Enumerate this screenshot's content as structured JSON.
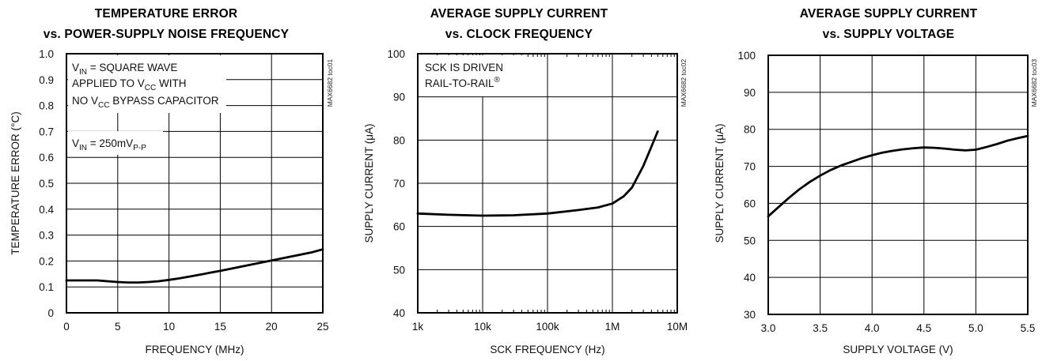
{
  "chart_data": [
    {
      "type": "line",
      "title_line1": "TEMPERATURE ERROR",
      "title_line2": "vs. POWER-SUPPLY NOISE FREQUENCY",
      "xlabel": "FREQUENCY (MHz)",
      "ylabel": "TEMPERATURE ERROR (°C)",
      "code": "MAX6682 toc01",
      "xlim": [
        0,
        25
      ],
      "ylim": [
        0,
        1.0
      ],
      "xscale": "linear",
      "xticks": [
        0,
        5,
        10,
        15,
        20,
        25
      ],
      "xtick_labels": [
        "0",
        "5",
        "10",
        "15",
        "20",
        "25"
      ],
      "yticks": [
        0,
        0.1,
        0.2,
        0.3,
        0.4,
        0.5,
        0.6,
        0.7,
        0.8,
        0.9,
        1.0
      ],
      "ytick_labels": [
        "0",
        "0.1",
        "0.2",
        "0.3",
        "0.4",
        "0.5",
        "0.6",
        "0.7",
        "0.8",
        "0.9",
        "1.0"
      ],
      "grid": true,
      "annotations": {
        "line1_main": "V",
        "line1_sub": "IN",
        "line1_rest": " = SQUARE WAVE",
        "line2_main": "APPLIED TO V",
        "line2_sub": "CC",
        "line2_rest": " WITH",
        "line3_main": "NO V",
        "line3_sub": "CC",
        "line3_rest": " BYPASS CAPACITOR",
        "line4_main": "V",
        "line4_sub": "IN",
        "line4_rest": " = 250mV",
        "line4_sub2": "P-P"
      },
      "series": [
        {
          "x": [
            0,
            1,
            2,
            3,
            4,
            5,
            6,
            7,
            8,
            9,
            10,
            11,
            12,
            13,
            14,
            15,
            16,
            17,
            18,
            19,
            20,
            21,
            22,
            23,
            24,
            25
          ],
          "y": [
            0.125,
            0.125,
            0.125,
            0.125,
            0.122,
            0.119,
            0.117,
            0.117,
            0.119,
            0.122,
            0.127,
            0.133,
            0.14,
            0.147,
            0.155,
            0.162,
            0.17,
            0.178,
            0.186,
            0.194,
            0.202,
            0.21,
            0.218,
            0.226,
            0.234,
            0.245
          ]
        }
      ]
    },
    {
      "type": "line",
      "title_line1": "AVERAGE SUPPLY CURRENT",
      "title_line2": "vs. CLOCK FREQUENCY",
      "xlabel": "SCK FREQUENCY (Hz)",
      "ylabel": "SUPPLY CURRENT (μA)",
      "code": "MAX6682 toc02",
      "xlim": [
        1000,
        10000000
      ],
      "ylim": [
        40,
        100
      ],
      "xscale": "log",
      "xticks": [
        1000,
        10000,
        100000,
        1000000,
        10000000
      ],
      "xtick_labels": [
        "1k",
        "10k",
        "100k",
        "1M",
        "10M"
      ],
      "yticks": [
        40,
        50,
        60,
        70,
        80,
        90,
        100
      ],
      "ytick_labels": [
        "40",
        "50",
        "60",
        "70",
        "80",
        "90",
        "100"
      ],
      "grid": true,
      "annotations": {
        "line1": "SCK IS DRIVEN",
        "line2": "RAIL-TO-RAIL",
        "line2_sup": "®"
      },
      "series": [
        {
          "x": [
            1000,
            3000,
            10000,
            30000,
            100000,
            300000,
            600000,
            1000000,
            1500000,
            2000000,
            3000000,
            4000000,
            5000000
          ],
          "y": [
            63.0,
            62.7,
            62.5,
            62.6,
            63.0,
            63.8,
            64.4,
            65.3,
            67.0,
            69.0,
            74.0,
            78.5,
            82.0
          ]
        }
      ]
    },
    {
      "type": "line",
      "title_line1": "AVERAGE SUPPLY CURRENT",
      "title_line2": "vs. SUPPLY VOLTAGE",
      "xlabel": "SUPPLY VOLTAGE (V)",
      "ylabel": "SUPPLY CURRENT (μA)",
      "code": "MAX6682 toc03",
      "xlim": [
        3.0,
        5.5
      ],
      "ylim": [
        30,
        100
      ],
      "xscale": "linear",
      "xticks": [
        3.0,
        3.5,
        4.0,
        4.5,
        5.0,
        5.5
      ],
      "xtick_labels": [
        "3.0",
        "3.5",
        "4.0",
        "4.5",
        "5.0",
        "5.5"
      ],
      "yticks": [
        30,
        40,
        50,
        60,
        70,
        80,
        90,
        100
      ],
      "ytick_labels": [
        "30",
        "40",
        "50",
        "60",
        "70",
        "80",
        "90",
        "100"
      ],
      "grid": true,
      "series": [
        {
          "x": [
            3.0,
            3.1,
            3.2,
            3.3,
            3.4,
            3.5,
            3.6,
            3.7,
            3.8,
            3.9,
            4.0,
            4.1,
            4.2,
            4.3,
            4.4,
            4.5,
            4.6,
            4.7,
            4.8,
            4.9,
            5.0,
            5.1,
            5.2,
            5.3,
            5.4,
            5.5
          ],
          "y": [
            56.5,
            59.0,
            61.5,
            63.8,
            65.8,
            67.5,
            69.0,
            70.2,
            71.2,
            72.2,
            73.0,
            73.7,
            74.2,
            74.6,
            74.9,
            75.1,
            75.0,
            74.8,
            74.5,
            74.3,
            74.5,
            75.2,
            76.0,
            76.9,
            77.6,
            78.2
          ]
        }
      ]
    }
  ]
}
